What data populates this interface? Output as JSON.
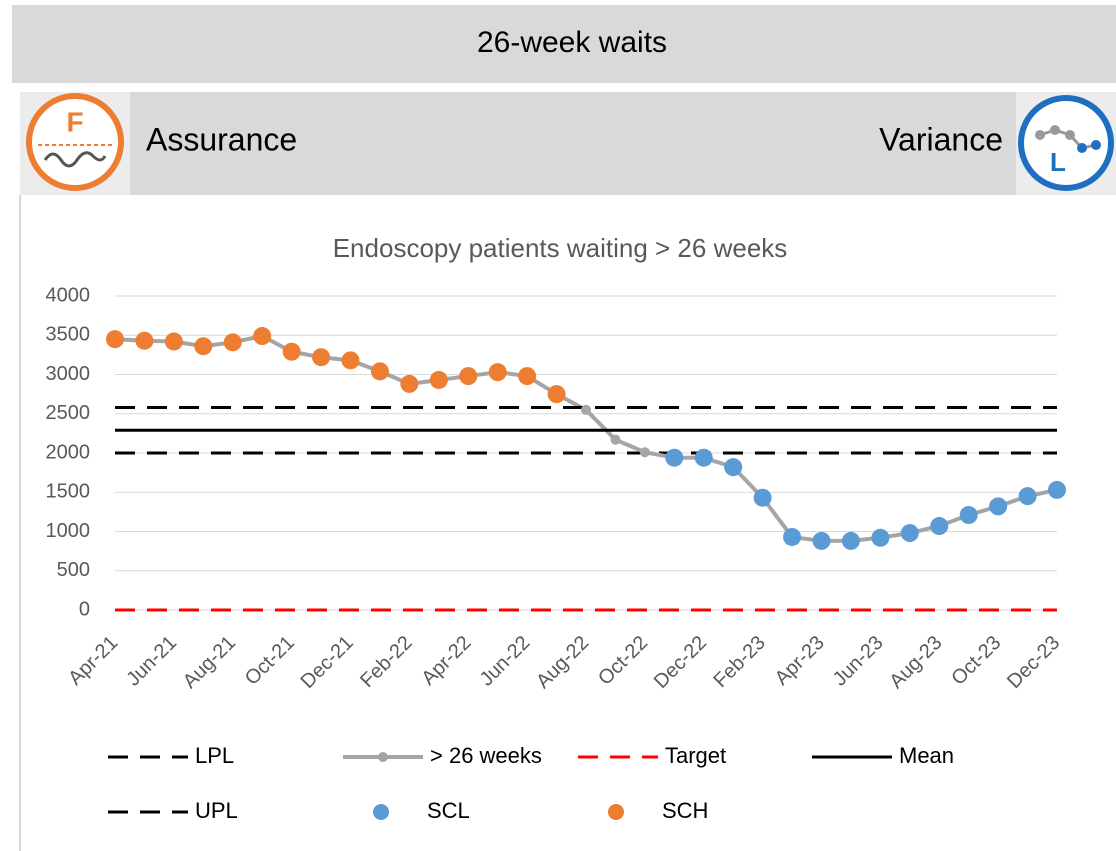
{
  "header": {
    "title": "26-week waits",
    "assurance": "Assurance",
    "variance": "Variance",
    "assurance_icon": "F",
    "variance_icon": "L"
  },
  "chart_data": {
    "type": "line",
    "title": "Endoscopy patients waiting > 26 weeks",
    "categories": [
      "Apr-21",
      null,
      "Jun-21",
      null,
      "Aug-21",
      null,
      "Oct-21",
      null,
      "Dec-21",
      null,
      "Feb-22",
      null,
      "Apr-22",
      null,
      "Jun-22",
      null,
      "Aug-22",
      null,
      "Oct-22",
      null,
      "Dec-22",
      null,
      "Feb-23",
      null,
      "Apr-23",
      null,
      "Jun-23",
      null,
      "Aug-23",
      null,
      "Oct-23",
      null,
      "Dec-23"
    ],
    "ylim": [
      0,
      4000
    ],
    "yticks": [
      0,
      500,
      1000,
      1500,
      2000,
      2500,
      3000,
      3500,
      4000
    ],
    "grid": true,
    "series": [
      {
        "name": "LPL",
        "color": "#000000",
        "style": "dashed",
        "values": [
          2000,
          2000,
          2000,
          2000,
          2000,
          2000,
          2000,
          2000,
          2000,
          2000,
          2000,
          2000,
          2000,
          2000,
          2000,
          2000,
          2000,
          2000,
          2000,
          2000,
          2000,
          2000,
          2000,
          2000,
          2000,
          2000,
          2000,
          2000,
          2000,
          2000,
          2000,
          2000,
          2000
        ]
      },
      {
        "name": "> 26 weeks",
        "color": "#a5a5a5",
        "style": "line-marker",
        "values": [
          3450,
          3430,
          3420,
          3360,
          3410,
          3490,
          3290,
          3220,
          3180,
          3040,
          2880,
          2930,
          2980,
          3030,
          2980,
          2750,
          2550,
          2170,
          2010,
          1940,
          1940,
          1820,
          1430,
          930,
          880,
          880,
          920,
          980,
          1070,
          1210,
          1320,
          1450,
          1530
        ]
      },
      {
        "name": "Target",
        "color": "#ff0000",
        "style": "dashed",
        "values": [
          0,
          0,
          0,
          0,
          0,
          0,
          0,
          0,
          0,
          0,
          0,
          0,
          0,
          0,
          0,
          0,
          0,
          0,
          0,
          0,
          0,
          0,
          0,
          0,
          0,
          0,
          0,
          0,
          0,
          0,
          0,
          0,
          0
        ]
      },
      {
        "name": "Mean",
        "color": "#000000",
        "style": "solid",
        "values": [
          2290,
          2290,
          2290,
          2290,
          2290,
          2290,
          2290,
          2290,
          2290,
          2290,
          2290,
          2290,
          2290,
          2290,
          2290,
          2290,
          2290,
          2290,
          2290,
          2290,
          2290,
          2290,
          2290,
          2290,
          2290,
          2290,
          2290,
          2290,
          2290,
          2290,
          2290,
          2290,
          2290
        ]
      },
      {
        "name": "UPL",
        "color": "#000000",
        "style": "dashed",
        "values": [
          2580,
          2580,
          2580,
          2580,
          2580,
          2580,
          2580,
          2580,
          2580,
          2580,
          2580,
          2580,
          2580,
          2580,
          2580,
          2580,
          2580,
          2580,
          2580,
          2580,
          2580,
          2580,
          2580,
          2580,
          2580,
          2580,
          2580,
          2580,
          2580,
          2580,
          2580,
          2580,
          2580
        ]
      },
      {
        "name": "SCL",
        "color": "#5b9bd5",
        "style": "dot",
        "values": [
          null,
          null,
          null,
          null,
          null,
          null,
          null,
          null,
          null,
          null,
          null,
          null,
          null,
          null,
          null,
          null,
          null,
          null,
          null,
          1940,
          1940,
          1820,
          1430,
          930,
          880,
          880,
          920,
          980,
          1070,
          1210,
          1320,
          1450,
          1530
        ]
      },
      {
        "name": "SCH",
        "color": "#ed7d31",
        "style": "dot",
        "values": [
          3450,
          3430,
          3420,
          3360,
          3410,
          3490,
          3290,
          3220,
          3180,
          3040,
          2880,
          2930,
          2980,
          3030,
          2980,
          2750,
          null,
          null,
          null,
          null,
          null,
          null,
          null,
          null,
          null,
          null,
          null,
          null,
          null,
          null,
          null,
          null,
          null
        ]
      }
    ]
  }
}
